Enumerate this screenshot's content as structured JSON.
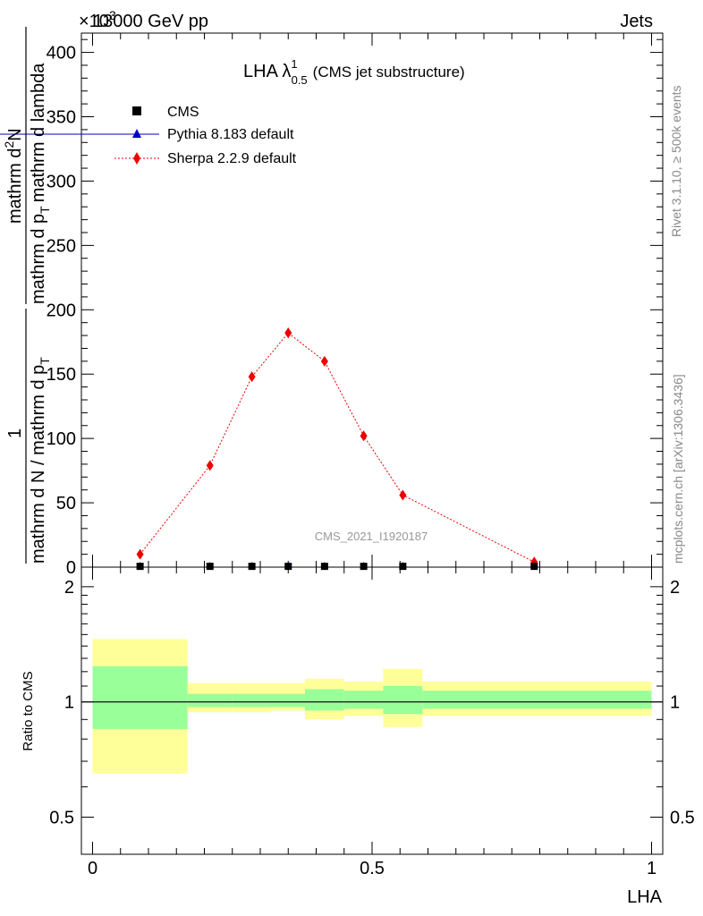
{
  "header": {
    "left": "13000 GeV pp",
    "right": "Jets",
    "exponent": "×10",
    "exponent_power": "3"
  },
  "side_labels": {
    "rivet": "Rivet 3.1.10, ≥ 500k events",
    "mcplots": "mcplots.cern.ch [arXiv:1306.3436]"
  },
  "watermark": "CMS_2021_I1920187",
  "colors": {
    "cms": "#000000",
    "pythia": "#0000cc",
    "sherpa": "#ee0000",
    "band_yellow": "#ffff99",
    "band_green": "#99ff99"
  },
  "chart_data": [
    {
      "type": "line",
      "panel": "main",
      "title": "LHA λ",
      "title_sup": "1",
      "title_sub": "0.5",
      "title_suffix": "(CMS jet substructure)",
      "ylabel": {
        "fraction_num": "1",
        "fraction_den": "mathrm d N / mathrm d p",
        "fraction_den_sub": "T",
        "deriv_num": "mathrm d",
        "deriv_num_sup": "2",
        "deriv_num_tail": "N",
        "deriv_den": "mathrm d p",
        "deriv_den_sub": "T",
        "deriv_den_tail": "mathrm d lambda"
      },
      "ylim": [
        0,
        415
      ],
      "yticks": [
        0,
        50,
        100,
        150,
        200,
        250,
        300,
        350,
        400
      ],
      "ytick_labels": [
        "0",
        "50",
        "100",
        "150",
        "200",
        "250",
        "300",
        "350",
        "400"
      ],
      "xlim": [
        -0.02,
        1.02
      ],
      "legend": [
        {
          "name": "CMS",
          "marker": "square"
        },
        {
          "name": "Pythia 8.183 default",
          "marker": "triangle"
        },
        {
          "name": "Sherpa 2.2.9 default",
          "marker": "diamond"
        }
      ],
      "series": [
        {
          "name": "CMS",
          "x": [
            0.085,
            0.21,
            0.285,
            0.35,
            0.415,
            0.485,
            0.555,
            0.79
          ],
          "y": [
            0.6,
            0.6,
            0.6,
            0.6,
            0.6,
            0.6,
            0.6,
            0.6
          ]
        },
        {
          "name": "Pythia 8.183 default",
          "x": [
            0.085,
            0.21,
            0.285,
            0.35,
            0.415,
            0.485,
            0.555,
            0.79
          ],
          "y": [
            0.6,
            0.6,
            0.6,
            0.6,
            0.6,
            0.6,
            0.6,
            0.6
          ]
        },
        {
          "name": "Sherpa 2.2.9 default",
          "x": [
            0.085,
            0.21,
            0.285,
            0.35,
            0.415,
            0.485,
            0.555,
            0.79
          ],
          "y": [
            10,
            79,
            148,
            182,
            160,
            102,
            56,
            4
          ],
          "yerr": [
            1,
            2,
            3,
            4,
            3,
            2,
            2,
            1
          ]
        }
      ]
    },
    {
      "type": "area",
      "panel": "ratio",
      "ylabel": "Ratio to CMS",
      "xlabel": "LHA",
      "ylim": [
        0.4,
        2.25
      ],
      "yscale": "log",
      "yticks": [
        0.5,
        1,
        2
      ],
      "ytick_labels": [
        "0.5",
        "1",
        "2"
      ],
      "xlim": [
        -0.02,
        1.02
      ],
      "xticks": [
        0,
        0.5,
        1
      ],
      "xtick_labels": [
        "0",
        "0.5",
        "1"
      ],
      "reference": 1,
      "bins": [
        {
          "x0": 0.0,
          "x1": 0.17,
          "green": [
            0.85,
            1.24
          ],
          "yellow": [
            0.65,
            1.46
          ]
        },
        {
          "x0": 0.17,
          "x1": 0.25,
          "green": [
            0.97,
            1.05
          ],
          "yellow": [
            0.94,
            1.12
          ]
        },
        {
          "x0": 0.25,
          "x1": 0.32,
          "green": [
            0.97,
            1.05
          ],
          "yellow": [
            0.94,
            1.12
          ]
        },
        {
          "x0": 0.32,
          "x1": 0.38,
          "green": [
            0.97,
            1.05
          ],
          "yellow": [
            0.95,
            1.12
          ]
        },
        {
          "x0": 0.38,
          "x1": 0.45,
          "green": [
            0.95,
            1.08
          ],
          "yellow": [
            0.9,
            1.15
          ]
        },
        {
          "x0": 0.45,
          "x1": 0.52,
          "green": [
            0.96,
            1.07
          ],
          "yellow": [
            0.92,
            1.13
          ]
        },
        {
          "x0": 0.52,
          "x1": 0.59,
          "green": [
            0.93,
            1.1
          ],
          "yellow": [
            0.86,
            1.22
          ]
        },
        {
          "x0": 0.59,
          "x1": 1.0,
          "green": [
            0.96,
            1.07
          ],
          "yellow": [
            0.92,
            1.13
          ]
        }
      ]
    }
  ]
}
